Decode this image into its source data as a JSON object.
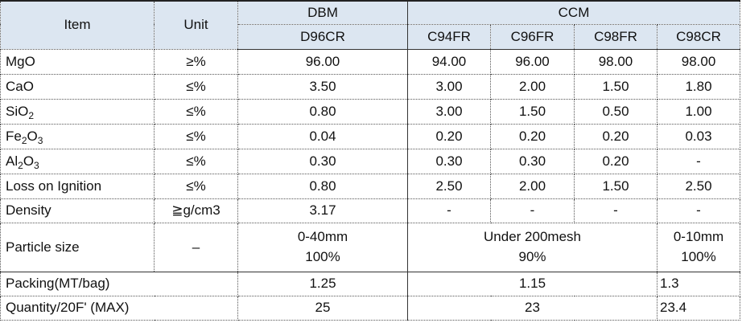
{
  "header": {
    "item": "Item",
    "unit": "Unit",
    "dbm": "DBM",
    "ccm": "CCM",
    "grades": [
      "D96CR",
      "C94FR",
      "C96FR",
      "C98FR",
      "C98CR"
    ]
  },
  "rows": [
    {
      "item": "MgO",
      "unit": "≥%",
      "values": [
        "96.00",
        "94.00",
        "96.00",
        "98.00",
        "98.00"
      ]
    },
    {
      "item": "CaO",
      "unit": "≤%",
      "values": [
        "3.50",
        "3.00",
        "2.00",
        "1.50",
        "1.80"
      ]
    },
    {
      "item_base": "SiO",
      "item_sub": "2",
      "unit": "≤%",
      "values": [
        "0.80",
        "3.00",
        "1.50",
        "0.50",
        "1.00"
      ]
    },
    {
      "item_parts": [
        "Fe",
        "2",
        "O",
        "3"
      ],
      "unit": "≤%",
      "values": [
        "0.04",
        "0.20",
        "0.20",
        "0.20",
        "0.03"
      ]
    },
    {
      "item_parts": [
        "Al",
        "2",
        "O",
        "3"
      ],
      "unit": "≤%",
      "values": [
        "0.30",
        "0.30",
        "0.30",
        "0.20",
        "-"
      ]
    },
    {
      "item": "Loss on Ignition",
      "unit": "≤%",
      "values": [
        "0.80",
        "2.50",
        "2.00",
        "1.50",
        "2.50"
      ]
    },
    {
      "item": "Density",
      "unit": "≧g/cm3",
      "values": [
        "3.17",
        "-",
        "-",
        "-",
        "-"
      ]
    }
  ],
  "particle": {
    "item": "Particle size",
    "unit": "–",
    "dbm_line1": "0-40mm",
    "dbm_line2": "100%",
    "ccm_line1": "Under 200mesh",
    "ccm_line2": "90%",
    "cr_line1": "0-10mm",
    "cr_line2": "100%"
  },
  "packing": {
    "item": "Packing(MT/bag)",
    "dbm": "1.25",
    "ccm": "1.15",
    "cr": "1.3"
  },
  "quantity": {
    "item": "Quantity/20F' (MAX)",
    "dbm": "25",
    "ccm": "23",
    "cr": "23.4"
  }
}
